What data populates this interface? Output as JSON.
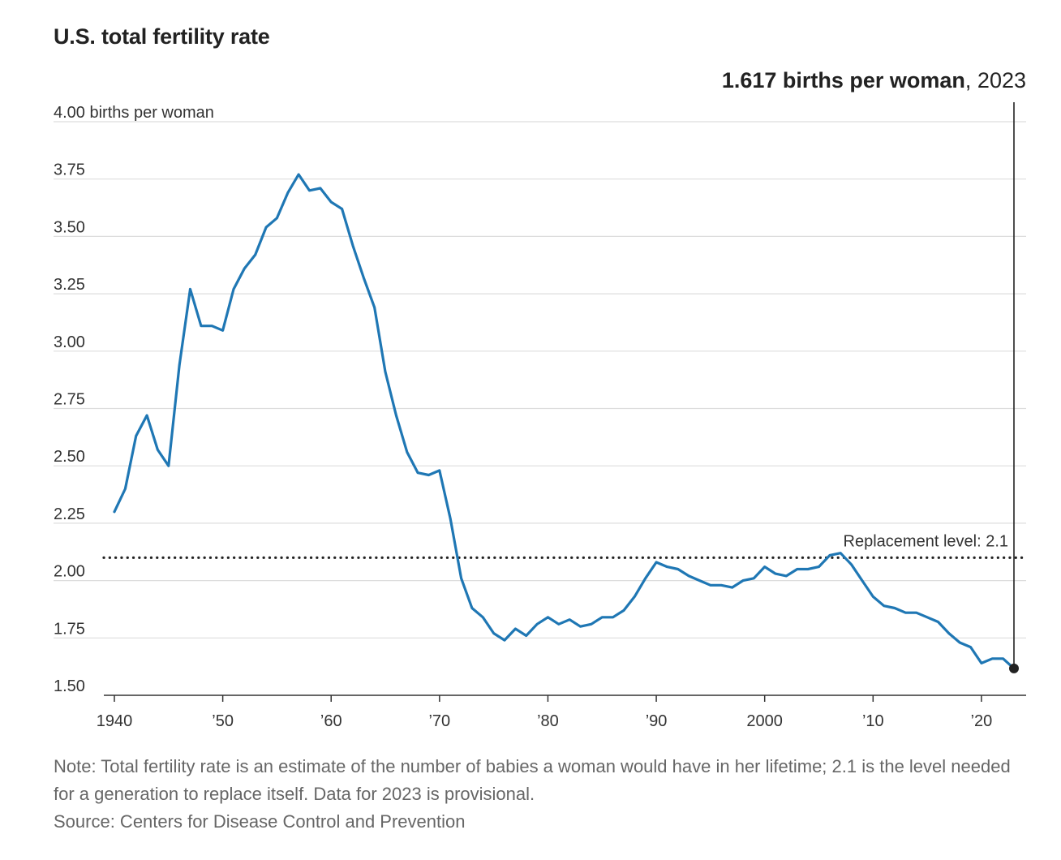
{
  "chart_data": {
    "type": "line",
    "title": "U.S. total fertility rate",
    "ylabel": "births per woman",
    "y_top_tick_label": "4.00 births per woman",
    "ylim": [
      1.5,
      4.0
    ],
    "xlim": [
      1940,
      2023
    ],
    "y_ticks": [
      1.5,
      1.75,
      2.0,
      2.25,
      2.5,
      2.75,
      3.0,
      3.25,
      3.5,
      3.75,
      4.0
    ],
    "y_tick_labels": [
      "1.50",
      "1.75",
      "2.00",
      "2.25",
      "2.50",
      "2.75",
      "3.00",
      "3.25",
      "3.50",
      "3.75",
      "4.00 births per woman"
    ],
    "x_ticks": [
      1940,
      1950,
      1960,
      1970,
      1980,
      1990,
      2000,
      2010,
      2020
    ],
    "x_tick_labels": [
      "1940",
      "’50",
      "’60",
      "’70",
      "’80",
      "’90",
      "2000",
      "’10",
      "’20"
    ],
    "grid": true,
    "series": [
      {
        "color": "#1f77b4",
        "x": [
          1940,
          1941,
          1942,
          1943,
          1944,
          1945,
          1946,
          1947,
          1948,
          1949,
          1950,
          1951,
          1952,
          1953,
          1954,
          1955,
          1956,
          1957,
          1958,
          1959,
          1960,
          1961,
          1962,
          1963,
          1964,
          1965,
          1966,
          1967,
          1968,
          1969,
          1970,
          1971,
          1972,
          1973,
          1974,
          1975,
          1976,
          1977,
          1978,
          1979,
          1980,
          1981,
          1982,
          1983,
          1984,
          1985,
          1986,
          1987,
          1988,
          1989,
          1990,
          1991,
          1992,
          1993,
          1994,
          1995,
          1996,
          1997,
          1998,
          1999,
          2000,
          2001,
          2002,
          2003,
          2004,
          2005,
          2006,
          2007,
          2008,
          2009,
          2010,
          2011,
          2012,
          2013,
          2014,
          2015,
          2016,
          2017,
          2018,
          2019,
          2020,
          2021,
          2022,
          2023
        ],
        "y": [
          2.3,
          2.4,
          2.63,
          2.72,
          2.57,
          2.5,
          2.94,
          3.27,
          3.11,
          3.11,
          3.09,
          3.27,
          3.36,
          3.42,
          3.54,
          3.58,
          3.69,
          3.77,
          3.7,
          3.71,
          3.65,
          3.62,
          3.46,
          3.32,
          3.19,
          2.91,
          2.72,
          2.56,
          2.47,
          2.46,
          2.48,
          2.27,
          2.01,
          1.88,
          1.84,
          1.77,
          1.74,
          1.79,
          1.76,
          1.81,
          1.84,
          1.81,
          1.83,
          1.8,
          1.81,
          1.84,
          1.84,
          1.87,
          1.93,
          2.01,
          2.08,
          2.06,
          2.05,
          2.02,
          2.0,
          1.98,
          1.98,
          1.97,
          2.0,
          2.01,
          2.06,
          2.03,
          2.02,
          2.05,
          2.05,
          2.06,
          2.11,
          2.12,
          2.07,
          2.0,
          1.93,
          1.89,
          1.88,
          1.86,
          1.86,
          1.84,
          1.82,
          1.77,
          1.73,
          1.71,
          1.64,
          1.66,
          1.66,
          1.617
        ]
      }
    ],
    "reference_line": {
      "value": 2.1,
      "label": "Replacement level: 2.1",
      "style": "dotted",
      "color": "#222222"
    },
    "highlight": {
      "x": 2023,
      "y": 1.617,
      "value_text": "1.617 births per woman",
      "year_text": ", 2023",
      "marker_color": "#222222"
    },
    "colors": {
      "line": "#1f77b4",
      "grid": "#dddddd",
      "axis": "#333333"
    }
  },
  "footer": {
    "note": "Note: Total fertility rate is an estimate of the number of babies a woman would have in her lifetime; 2.1 is the level needed for a generation to replace itself. Data for 2023 is provisional.",
    "source": "Source: Centers for Disease Control and Prevention"
  }
}
